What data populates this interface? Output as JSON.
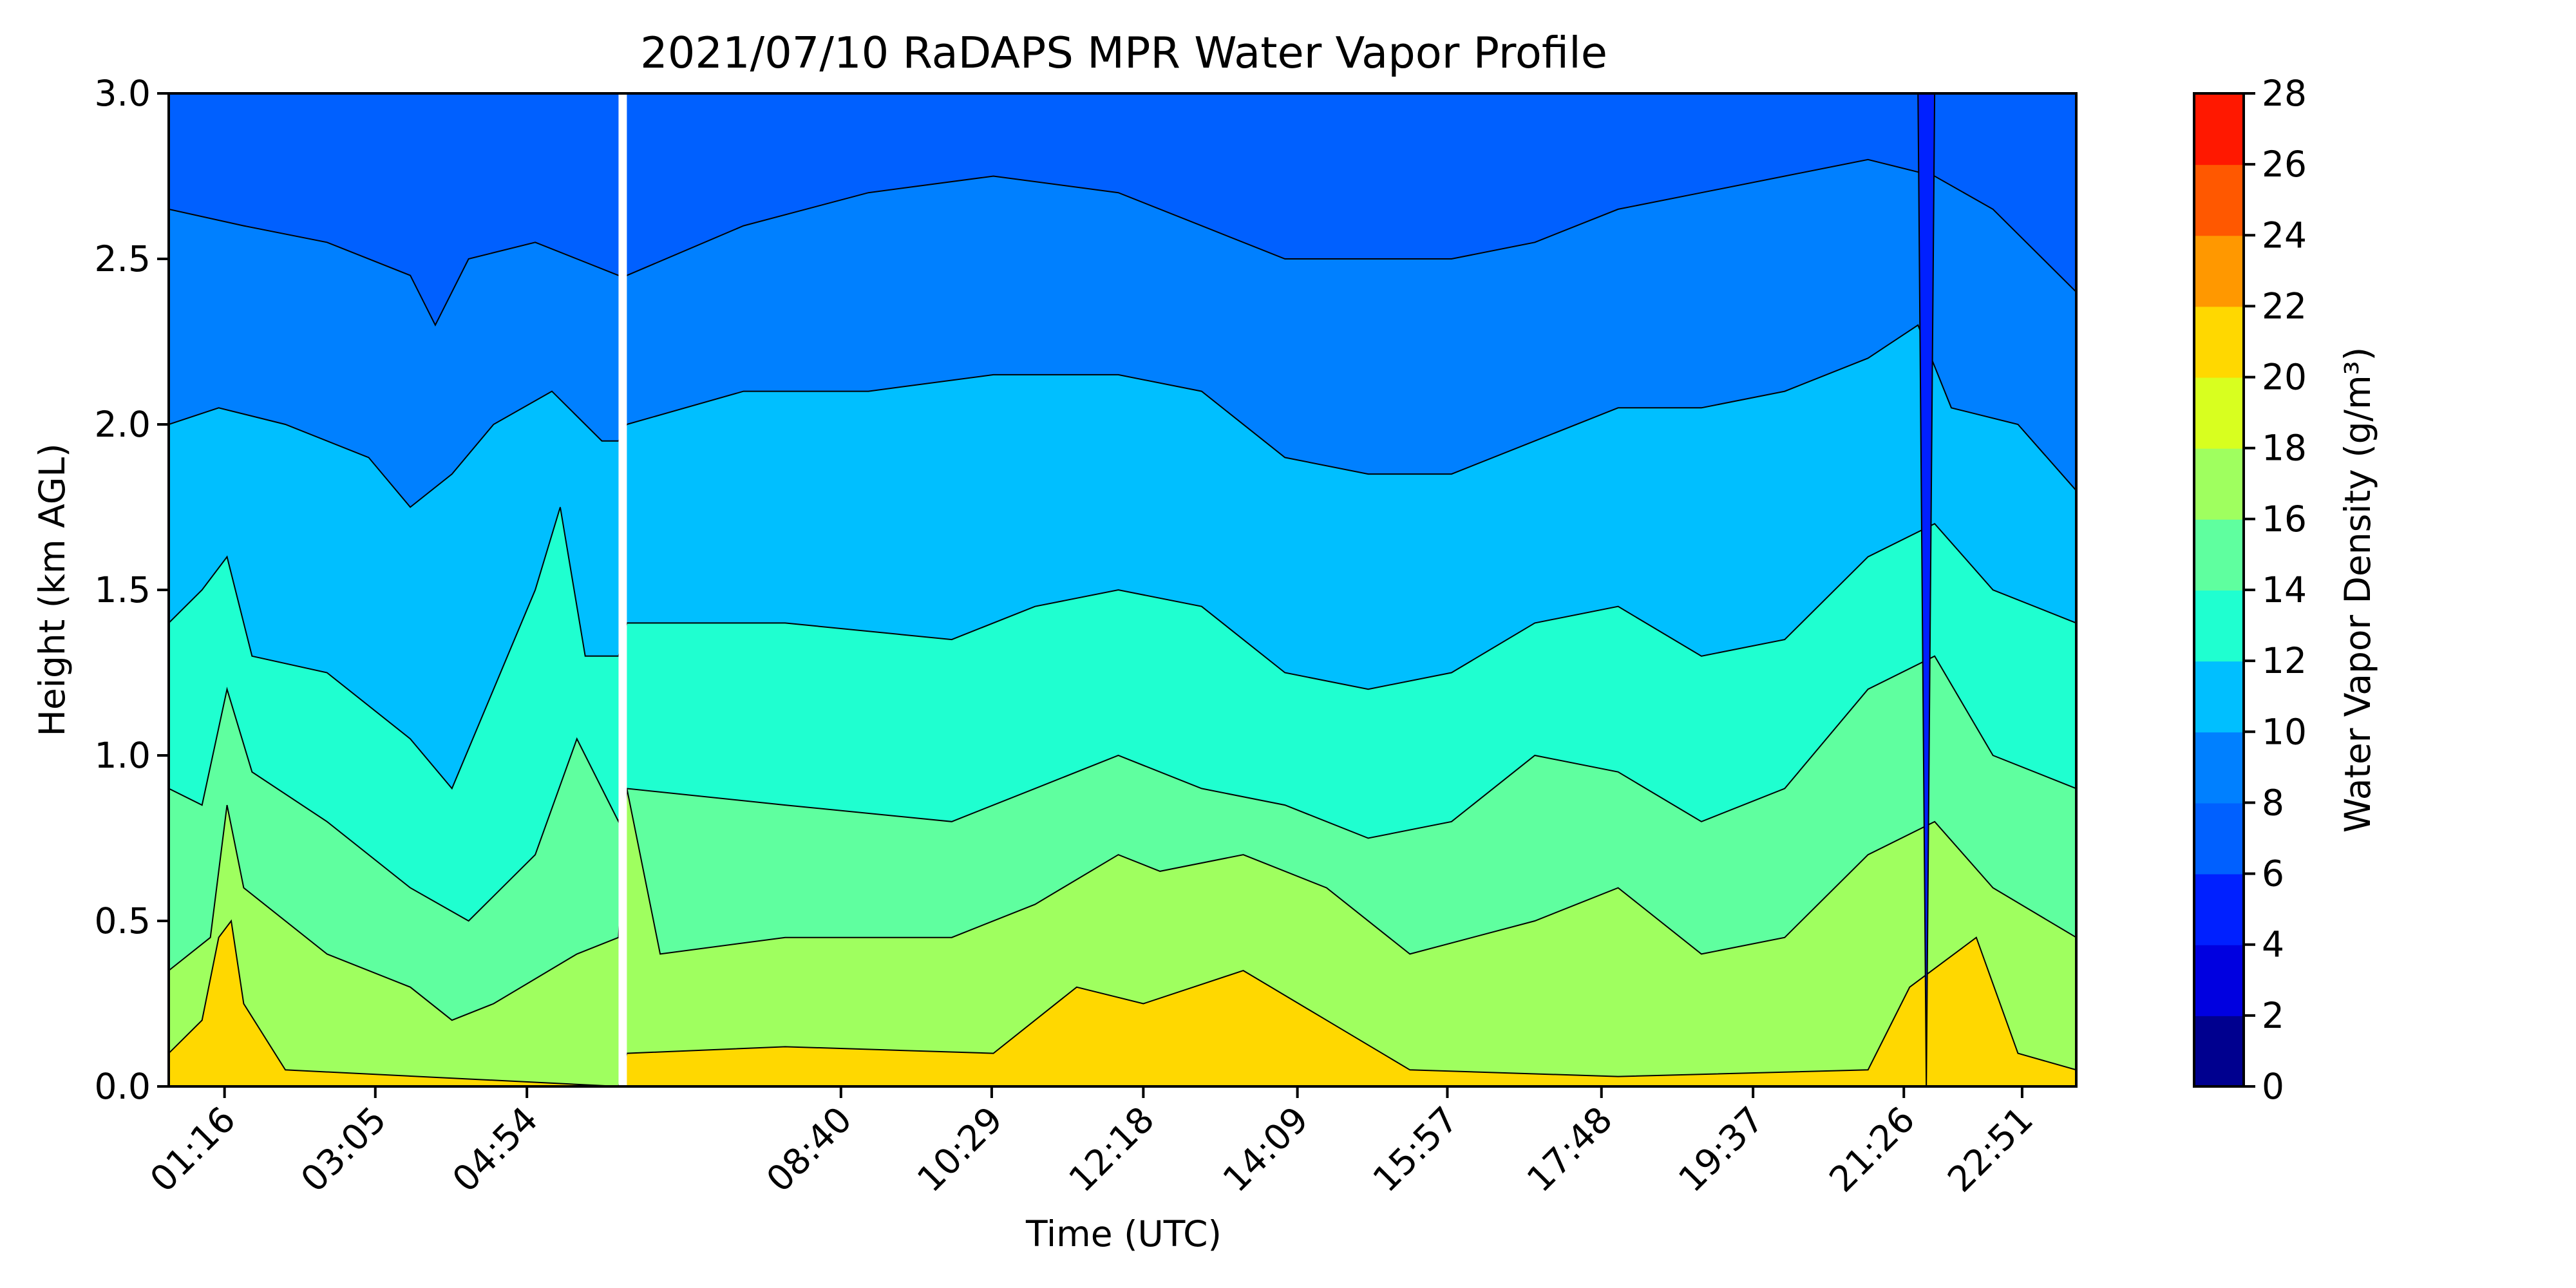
{
  "chart_data": {
    "type": "heatmap",
    "subtype": "filled-contour",
    "title": "2021/07/10 RaDAPS MPR Water Vapor Profile",
    "xlabel": "Time (UTC)",
    "ylabel": "Height (km AGL)",
    "x_ticks": [
      "01:16",
      "03:05",
      "04:54",
      "08:40",
      "10:29",
      "12:18",
      "14:09",
      "15:57",
      "17:48",
      "19:37",
      "21:26",
      "22:51"
    ],
    "x_tick_hours": [
      1.27,
      3.08,
      4.9,
      8.67,
      10.48,
      12.3,
      14.15,
      15.95,
      17.8,
      19.62,
      21.43,
      22.85
    ],
    "x_range_hours": [
      0.6,
      23.5
    ],
    "data_gap_hours": [
      6.0,
      6.1
    ],
    "y_ticks": [
      "0.0",
      "0.5",
      "1.0",
      "1.5",
      "2.0",
      "2.5",
      "3.0"
    ],
    "ylim": [
      0,
      3.0
    ],
    "colorbar": {
      "label": "Water Vapor Density (g/m³)",
      "ticks": [
        "0",
        "2",
        "4",
        "6",
        "8",
        "10",
        "12",
        "14",
        "16",
        "18",
        "20",
        "22",
        "24",
        "26",
        "28"
      ],
      "levels": [
        0,
        2,
        4,
        6,
        8,
        10,
        12,
        14,
        16,
        18,
        20,
        22,
        24,
        26,
        28
      ],
      "colors": [
        "#00008f",
        "#0000e0",
        "#0020ff",
        "#0060ff",
        "#0080ff",
        "#00bfff",
        "#1fffd0",
        "#5fff9f",
        "#9fff5f",
        "#d8ff1f",
        "#ffd800",
        "#ff9800",
        "#ff5800",
        "#ff1800",
        "#a00000"
      ]
    },
    "contour_heights_km": {
      "level_18": [
        [
          0.6,
          0.1
        ],
        [
          1.0,
          0.2
        ],
        [
          1.2,
          0.45
        ],
        [
          1.35,
          0.5
        ],
        [
          1.5,
          0.25
        ],
        [
          2.0,
          0.05
        ],
        [
          6.0,
          0.0
        ],
        [
          6.1,
          0.1
        ],
        [
          8.0,
          0.12
        ],
        [
          10.5,
          0.1
        ],
        [
          11.5,
          0.3
        ],
        [
          12.3,
          0.25
        ],
        [
          13.5,
          0.35
        ],
        [
          14.5,
          0.2
        ],
        [
          15.5,
          0.05
        ],
        [
          18.0,
          0.03
        ],
        [
          21.0,
          0.05
        ],
        [
          21.5,
          0.3
        ],
        [
          22.3,
          0.45
        ],
        [
          22.8,
          0.1
        ],
        [
          23.5,
          0.05
        ]
      ],
      "level_16": [
        [
          0.6,
          0.35
        ],
        [
          1.1,
          0.45
        ],
        [
          1.3,
          0.85
        ],
        [
          1.5,
          0.6
        ],
        [
          2.5,
          0.4
        ],
        [
          3.5,
          0.3
        ],
        [
          4.0,
          0.2
        ],
        [
          4.5,
          0.25
        ],
        [
          5.5,
          0.4
        ],
        [
          6.0,
          0.45
        ],
        [
          6.1,
          0.9
        ],
        [
          6.5,
          0.4
        ],
        [
          8.0,
          0.45
        ],
        [
          10.0,
          0.45
        ],
        [
          11.0,
          0.55
        ],
        [
          12.0,
          0.7
        ],
        [
          12.5,
          0.65
        ],
        [
          13.5,
          0.7
        ],
        [
          14.5,
          0.6
        ],
        [
          15.5,
          0.4
        ],
        [
          17.0,
          0.5
        ],
        [
          18.0,
          0.6
        ],
        [
          19.0,
          0.4
        ],
        [
          20.0,
          0.45
        ],
        [
          21.0,
          0.7
        ],
        [
          21.8,
          0.8
        ],
        [
          22.5,
          0.6
        ],
        [
          23.5,
          0.45
        ]
      ],
      "level_14": [
        [
          0.6,
          0.9
        ],
        [
          1.0,
          0.85
        ],
        [
          1.3,
          1.2
        ],
        [
          1.6,
          0.95
        ],
        [
          2.5,
          0.8
        ],
        [
          3.5,
          0.6
        ],
        [
          4.2,
          0.5
        ],
        [
          5.0,
          0.7
        ],
        [
          5.5,
          1.05
        ],
        [
          6.0,
          0.8
        ],
        [
          6.1,
          0.9
        ],
        [
          8.0,
          0.85
        ],
        [
          10.0,
          0.8
        ],
        [
          11.0,
          0.9
        ],
        [
          12.0,
          1.0
        ],
        [
          13.0,
          0.9
        ],
        [
          14.0,
          0.85
        ],
        [
          15.0,
          0.75
        ],
        [
          16.0,
          0.8
        ],
        [
          17.0,
          1.0
        ],
        [
          18.0,
          0.95
        ],
        [
          19.0,
          0.8
        ],
        [
          20.0,
          0.9
        ],
        [
          21.0,
          1.2
        ],
        [
          21.8,
          1.3
        ],
        [
          22.5,
          1.0
        ],
        [
          23.5,
          0.9
        ]
      ],
      "level_12": [
        [
          0.6,
          1.4
        ],
        [
          1.0,
          1.5
        ],
        [
          1.3,
          1.6
        ],
        [
          1.6,
          1.3
        ],
        [
          2.5,
          1.25
        ],
        [
          3.5,
          1.05
        ],
        [
          4.0,
          0.9
        ],
        [
          4.5,
          1.2
        ],
        [
          5.0,
          1.5
        ],
        [
          5.3,
          1.75
        ],
        [
          5.6,
          1.3
        ],
        [
          6.0,
          1.3
        ],
        [
          6.1,
          1.4
        ],
        [
          8.0,
          1.4
        ],
        [
          10.0,
          1.35
        ],
        [
          11.0,
          1.45
        ],
        [
          12.0,
          1.5
        ],
        [
          13.0,
          1.45
        ],
        [
          14.0,
          1.25
        ],
        [
          15.0,
          1.2
        ],
        [
          16.0,
          1.25
        ],
        [
          17.0,
          1.4
        ],
        [
          18.0,
          1.45
        ],
        [
          19.0,
          1.3
        ],
        [
          20.0,
          1.35
        ],
        [
          21.0,
          1.6
        ],
        [
          21.8,
          1.7
        ],
        [
          22.5,
          1.5
        ],
        [
          23.5,
          1.4
        ]
      ],
      "level_10": [
        [
          0.6,
          2.0
        ],
        [
          1.2,
          2.05
        ],
        [
          2.0,
          2.0
        ],
        [
          3.0,
          1.9
        ],
        [
          3.5,
          1.75
        ],
        [
          4.0,
          1.85
        ],
        [
          4.5,
          2.0
        ],
        [
          5.2,
          2.1
        ],
        [
          5.8,
          1.95
        ],
        [
          6.0,
          1.95
        ],
        [
          6.1,
          2.0
        ],
        [
          7.5,
          2.1
        ],
        [
          9.0,
          2.1
        ],
        [
          10.5,
          2.15
        ],
        [
          12.0,
          2.15
        ],
        [
          13.0,
          2.1
        ],
        [
          14.0,
          1.9
        ],
        [
          15.0,
          1.85
        ],
        [
          16.0,
          1.85
        ],
        [
          17.0,
          1.95
        ],
        [
          18.0,
          2.05
        ],
        [
          19.0,
          2.05
        ],
        [
          20.0,
          2.1
        ],
        [
          21.0,
          2.2
        ],
        [
          21.6,
          2.3
        ],
        [
          22.0,
          2.05
        ],
        [
          22.8,
          2.0
        ],
        [
          23.5,
          1.8
        ]
      ],
      "level_8": [
        [
          0.6,
          2.65
        ],
        [
          1.5,
          2.6
        ],
        [
          2.5,
          2.55
        ],
        [
          3.5,
          2.45
        ],
        [
          3.8,
          2.3
        ],
        [
          4.2,
          2.5
        ],
        [
          5.0,
          2.55
        ],
        [
          5.5,
          2.5
        ],
        [
          6.0,
          2.45
        ],
        [
          6.1,
          2.45
        ],
        [
          7.5,
          2.6
        ],
        [
          9.0,
          2.7
        ],
        [
          10.5,
          2.75
        ],
        [
          12.0,
          2.7
        ],
        [
          13.0,
          2.6
        ],
        [
          14.0,
          2.5
        ],
        [
          15.0,
          2.5
        ],
        [
          16.0,
          2.5
        ],
        [
          17.0,
          2.55
        ],
        [
          18.0,
          2.65
        ],
        [
          19.0,
          2.7
        ],
        [
          20.0,
          2.75
        ],
        [
          21.0,
          2.8
        ],
        [
          21.8,
          2.75
        ],
        [
          22.5,
          2.65
        ],
        [
          23.5,
          2.4
        ]
      ],
      "level_6": [
        [
          0.6,
          3.0
        ],
        [
          21.6,
          3.0
        ],
        [
          21.7,
          0.0
        ],
        [
          21.8,
          3.0
        ],
        [
          23.5,
          3.0
        ]
      ]
    }
  }
}
